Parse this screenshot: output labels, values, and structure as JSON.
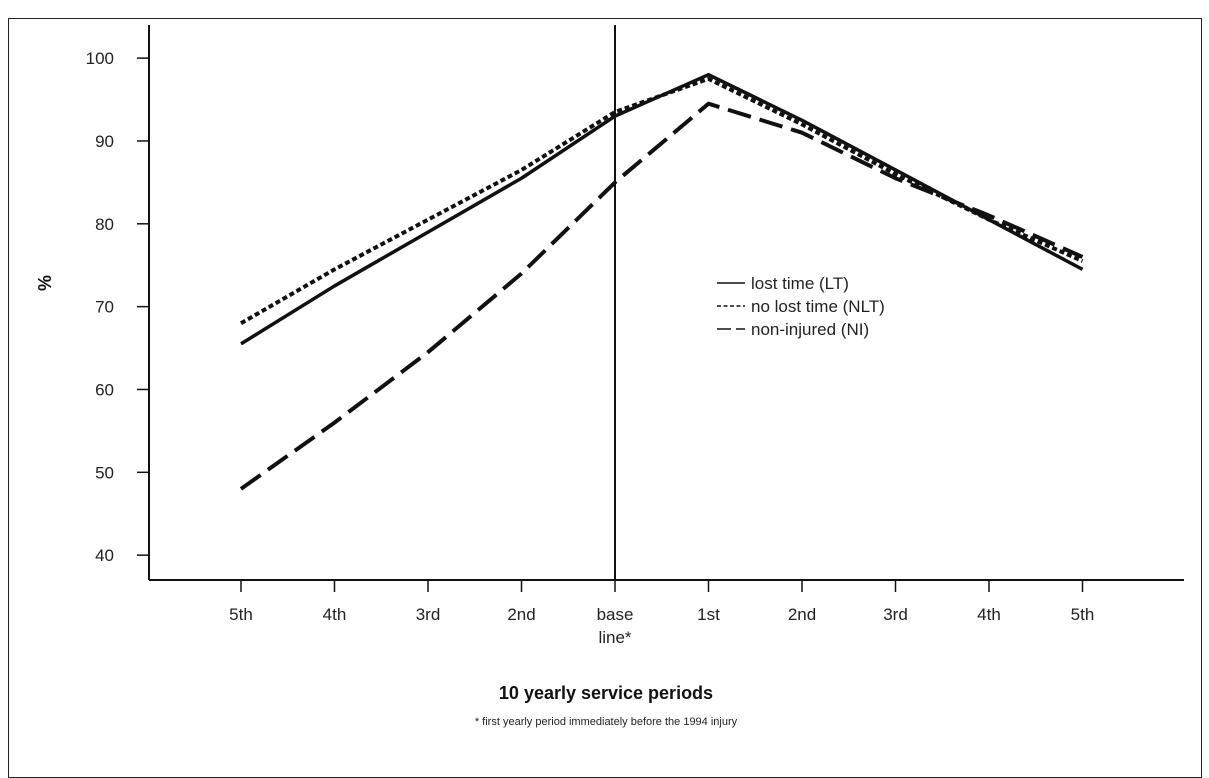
{
  "chart_data": {
    "type": "line",
    "title": "",
    "xlabel": "10 yearly service periods",
    "ylabel": "%",
    "footnote": "* first yearly period immediately before the 1994 injury",
    "categories": [
      "5th",
      "4th",
      "3rd",
      "2nd",
      "base line*",
      "1st",
      "2nd",
      "3rd",
      "4th",
      "5th"
    ],
    "category_lines": [
      [
        "5th"
      ],
      [
        "4th"
      ],
      [
        "3rd"
      ],
      [
        "2nd"
      ],
      [
        "base",
        "line*"
      ],
      [
        "1st"
      ],
      [
        "2nd"
      ],
      [
        "3rd"
      ],
      [
        "4th"
      ],
      [
        "5th"
      ]
    ],
    "yticks": [
      40,
      50,
      60,
      70,
      80,
      90,
      100
    ],
    "ylim": [
      37,
      104
    ],
    "baseline_marker": "base line*",
    "legend_position": "center-right",
    "grid": false,
    "series": [
      {
        "name": "lost time (LT)",
        "style": "solid",
        "values": [
          65.5,
          72.5,
          79,
          85.5,
          93,
          98,
          92.5,
          86.5,
          80.5,
          74.5
        ]
      },
      {
        "name": "no lost time (NLT)",
        "style": "dotted",
        "values": [
          68,
          74.5,
          80.5,
          86.5,
          93.5,
          97.5,
          92,
          86,
          80.5,
          75.5
        ]
      },
      {
        "name": "non-injured (NI)",
        "style": "dashed",
        "values": [
          48,
          56,
          64.5,
          74,
          85,
          94.5,
          91,
          85.5,
          81,
          76
        ]
      }
    ]
  }
}
